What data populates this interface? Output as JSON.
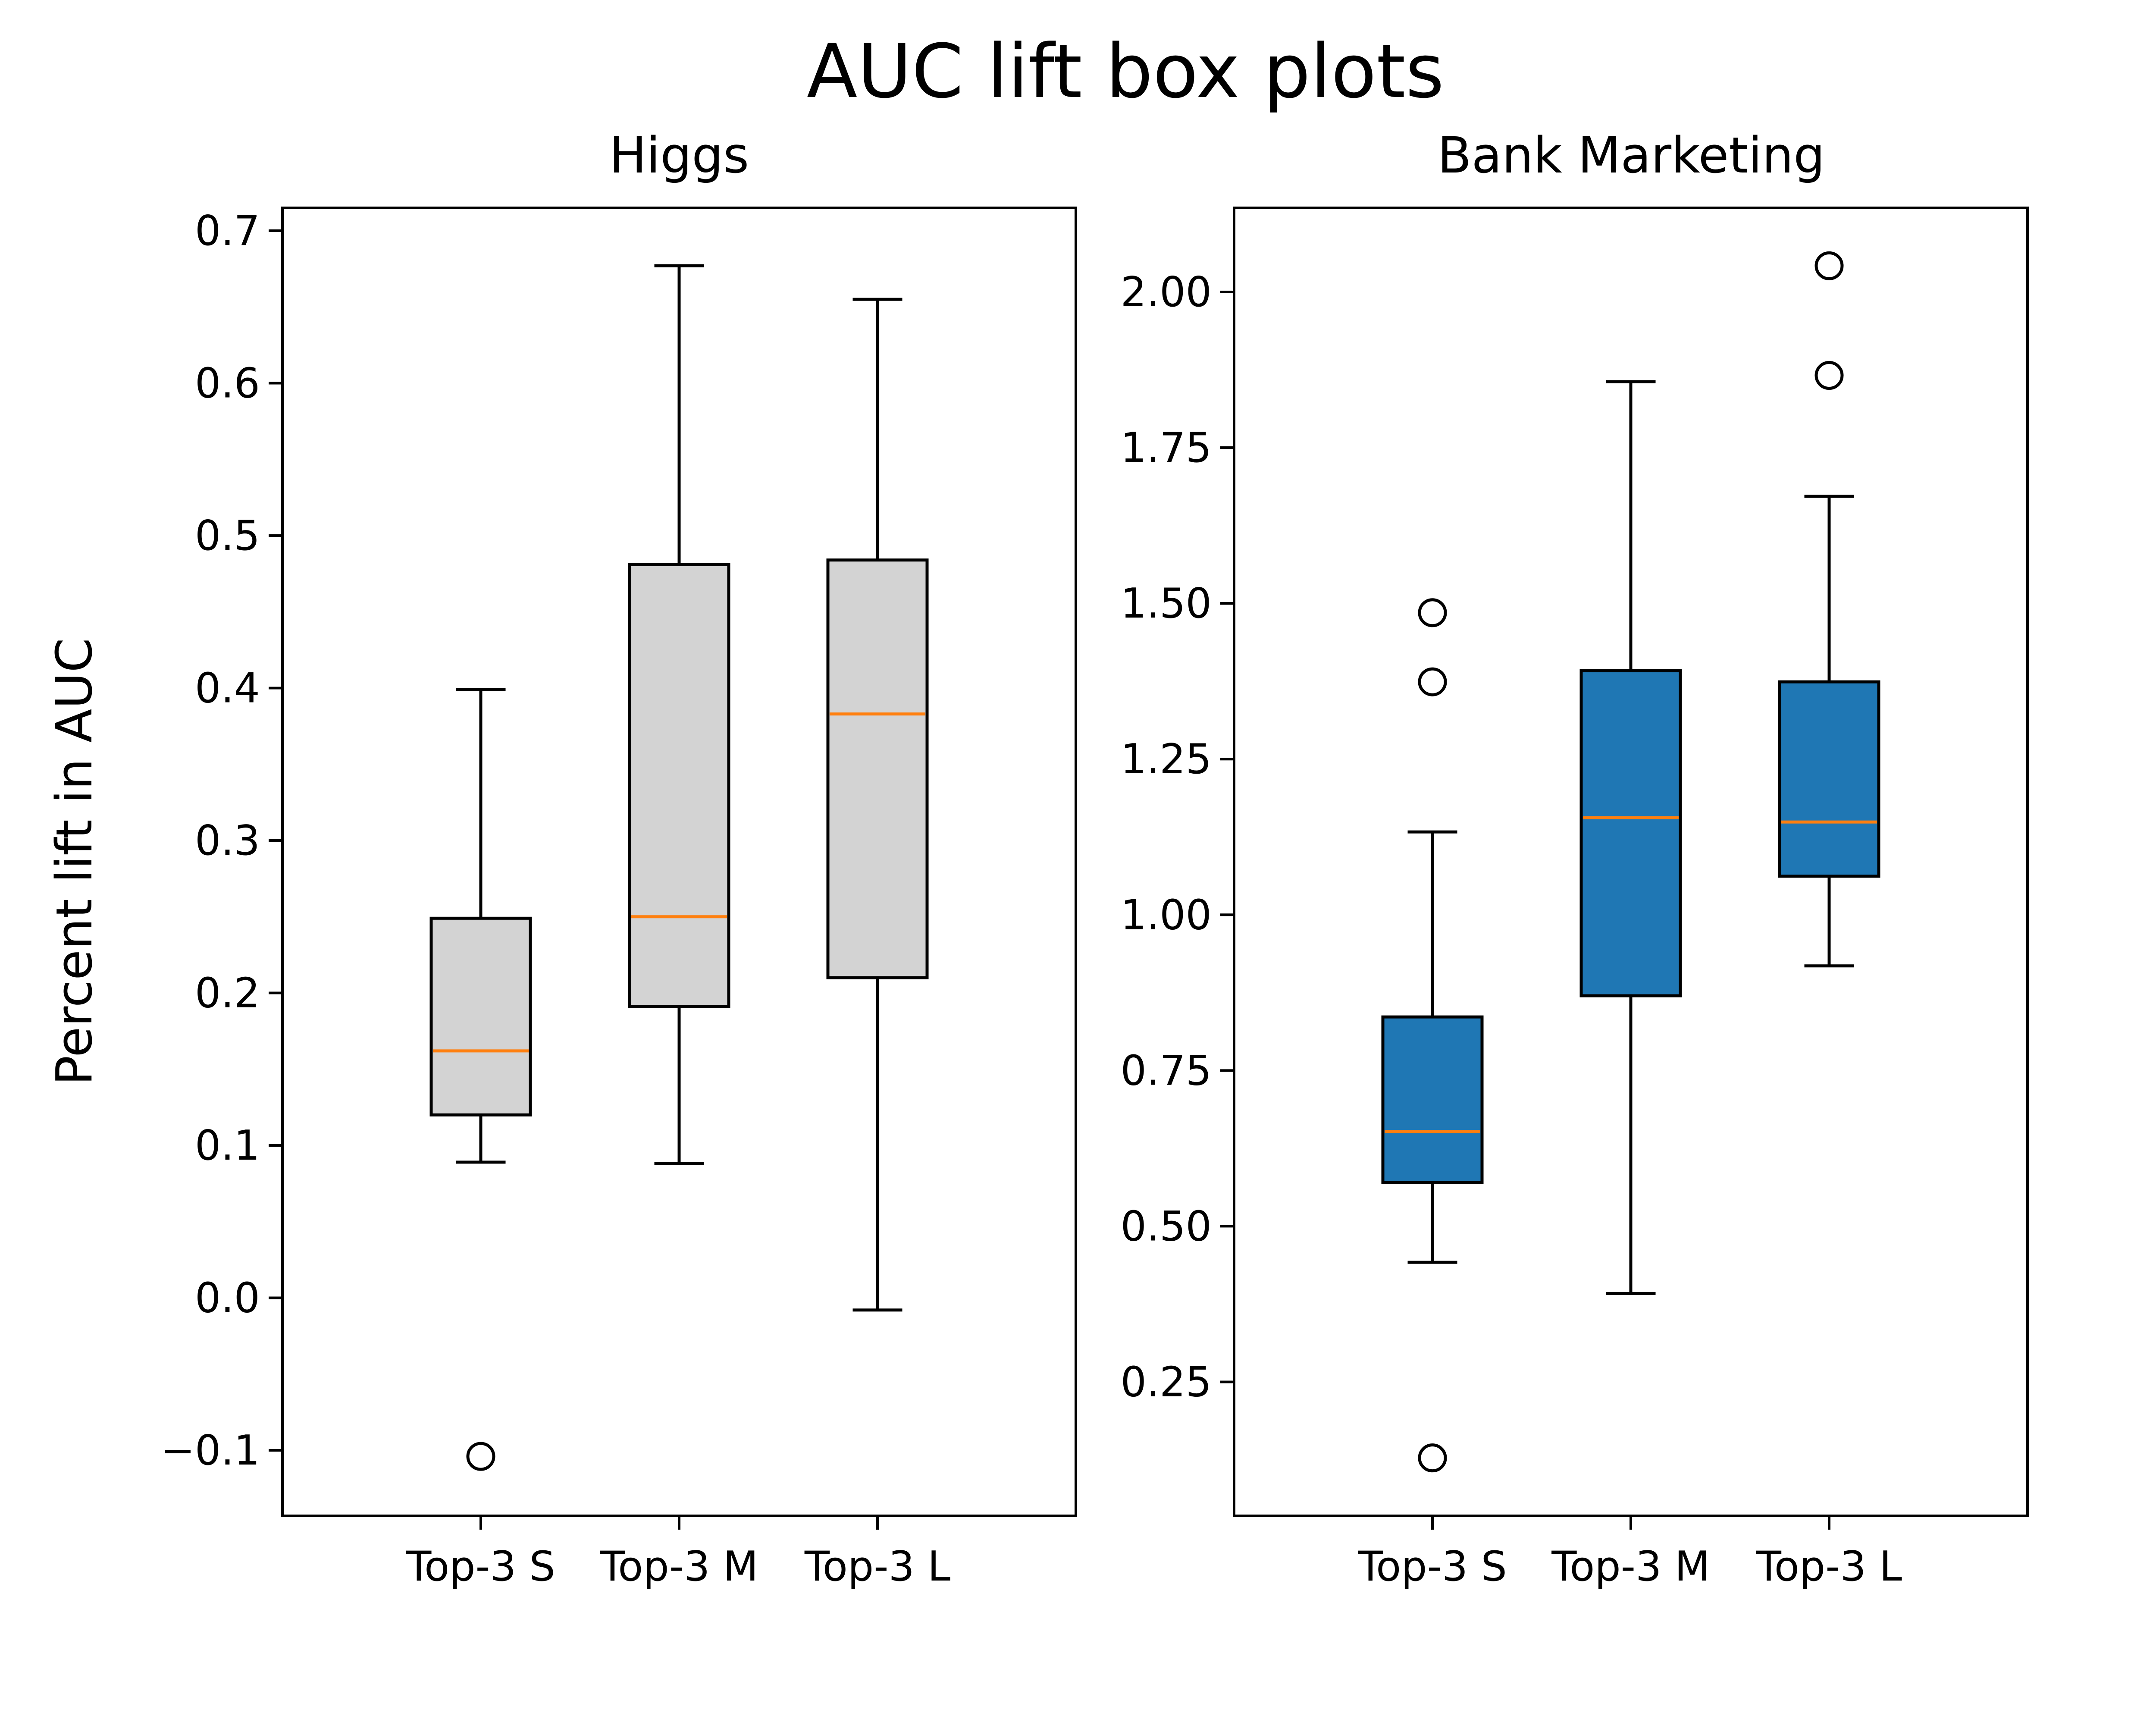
{
  "figure": {
    "title": "AUC lift box plots",
    "ylabel": "Percent lift in AUC"
  },
  "colors": {
    "higgs_box_fill": "#d3d3d3",
    "bank_box_fill": "#1f77b4",
    "median_line": "#ff7f0e",
    "outline": "#000000"
  },
  "chart_data": [
    {
      "type": "box",
      "title": "Higgs",
      "xlabel": "",
      "ylabel": "Percent lift in AUC",
      "categories": [
        "Top-3 S",
        "Top-3 M",
        "Top-3 L"
      ],
      "ylim": [
        -0.143,
        0.715
      ],
      "yticks": [
        -0.1,
        0.0,
        0.1,
        0.2,
        0.3,
        0.4,
        0.5,
        0.6,
        0.7
      ],
      "ytick_labels": [
        "−0.1",
        "0.0",
        "0.1",
        "0.2",
        "0.3",
        "0.4",
        "0.5",
        "0.6",
        "0.7"
      ],
      "boxes": [
        {
          "label": "Top-3 S",
          "whislo": 0.089,
          "q1": 0.12,
          "median": 0.162,
          "q3": 0.249,
          "whishi": 0.399,
          "fliers": [
            -0.104
          ]
        },
        {
          "label": "Top-3 M",
          "whislo": 0.088,
          "q1": 0.191,
          "median": 0.25,
          "q3": 0.481,
          "whishi": 0.677,
          "fliers": []
        },
        {
          "label": "Top-3 L",
          "whislo": -0.008,
          "q1": 0.21,
          "median": 0.383,
          "q3": 0.484,
          "whishi": 0.655,
          "fliers": []
        }
      ]
    },
    {
      "type": "box",
      "title": "Bank Marketing",
      "xlabel": "",
      "ylabel": "",
      "categories": [
        "Top-3 S",
        "Top-3 M",
        "Top-3 L"
      ],
      "ylim": [
        0.035,
        2.135
      ],
      "yticks": [
        0.25,
        0.5,
        0.75,
        1.0,
        1.25,
        1.5,
        1.75,
        2.0
      ],
      "ytick_labels": [
        "0.25",
        "0.50",
        "0.75",
        "1.00",
        "1.25",
        "1.50",
        "1.75",
        "2.00"
      ],
      "boxes": [
        {
          "label": "Top-3 S",
          "whislo": 0.442,
          "q1": 0.57,
          "median": 0.652,
          "q3": 0.836,
          "whishi": 1.133,
          "fliers": [
            1.485,
            1.374,
            0.128
          ]
        },
        {
          "label": "Top-3 M",
          "whislo": 0.392,
          "q1": 0.87,
          "median": 1.156,
          "q3": 1.392,
          "whishi": 1.856,
          "fliers": []
        },
        {
          "label": "Top-3 L",
          "whislo": 0.918,
          "q1": 1.062,
          "median": 1.149,
          "q3": 1.374,
          "whishi": 1.672,
          "fliers": [
            2.042,
            1.866
          ]
        }
      ]
    }
  ]
}
